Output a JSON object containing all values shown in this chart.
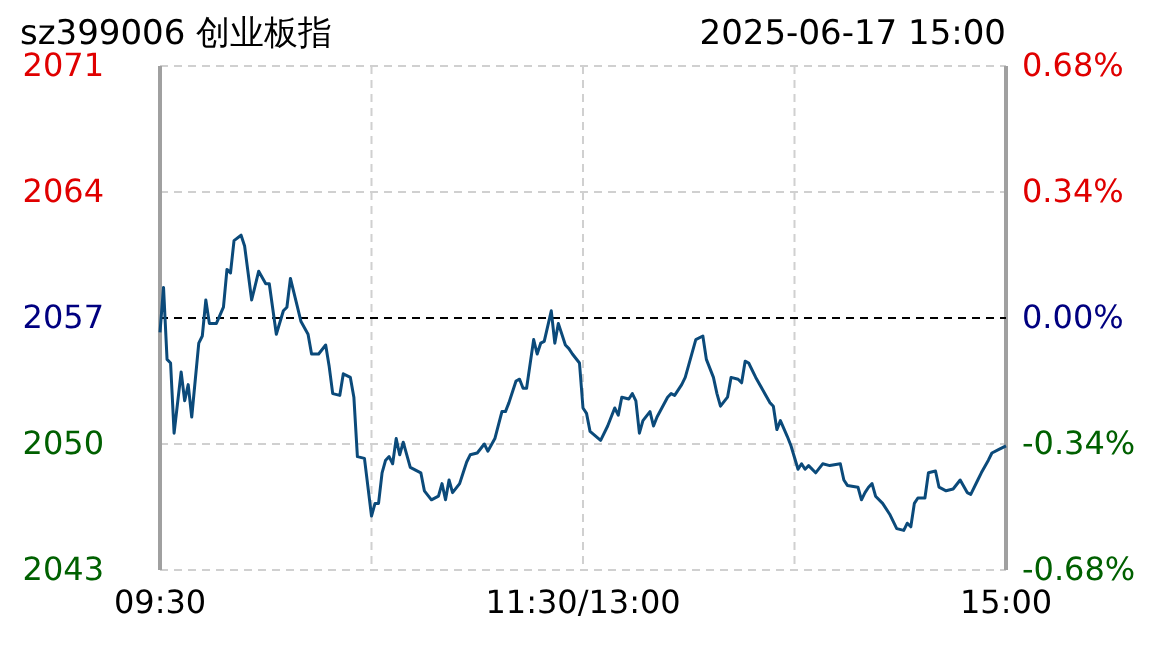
{
  "chart_data": {
    "type": "line",
    "title": "sz399006 创业板指",
    "subtitle": "2025-06-17  15:00",
    "categories": [
      "09:30",
      null,
      null,
      null,
      null,
      null,
      null,
      null,
      null,
      null,
      null,
      null,
      null,
      null,
      null,
      null,
      null,
      null,
      null,
      null,
      null,
      null,
      null,
      null,
      null,
      null,
      null,
      null,
      null,
      null,
      null,
      null,
      null,
      null,
      null,
      null,
      null,
      null,
      null,
      null,
      null,
      null,
      null,
      null,
      null,
      null,
      null,
      null,
      null,
      null,
      null,
      null,
      null,
      null,
      null,
      null,
      null,
      null,
      null,
      null,
      null,
      null,
      null,
      null,
      null,
      null,
      null,
      null,
      null,
      null,
      null,
      null,
      null,
      null,
      null,
      null,
      null,
      null,
      null,
      null,
      null,
      null,
      null,
      null,
      null,
      null,
      null,
      null,
      null,
      null,
      null,
      null,
      null,
      null,
      null,
      null,
      null,
      null,
      null,
      null,
      null,
      null,
      null,
      null,
      null,
      null,
      null,
      null,
      null,
      null,
      null,
      null,
      null,
      null,
      null,
      null,
      null,
      null,
      null,
      null,
      "11:30/13:00",
      null,
      null,
      null,
      null,
      null,
      null,
      null,
      null,
      null,
      null,
      null,
      null,
      null,
      null,
      null,
      null,
      null,
      null,
      null,
      null,
      null,
      null,
      null,
      null,
      null,
      null,
      null,
      null,
      null,
      null,
      null,
      null,
      null,
      null,
      null,
      null,
      null,
      null,
      null,
      null,
      null,
      null,
      null,
      null,
      null,
      null,
      null,
      null,
      null,
      null,
      null,
      null,
      null,
      null,
      null,
      null,
      null,
      null,
      null,
      null,
      null,
      null,
      null,
      null,
      null,
      null,
      null,
      null,
      null,
      null,
      null,
      null,
      null,
      null,
      null,
      null,
      null,
      null,
      null,
      null,
      null,
      null,
      null,
      null,
      null,
      null,
      null,
      null,
      null,
      null,
      null,
      null,
      null,
      null,
      null,
      null,
      null,
      null,
      null,
      null,
      null,
      null,
      null,
      null,
      null,
      null,
      null,
      null,
      null,
      null,
      null,
      null,
      null,
      null,
      null,
      null,
      null,
      null,
      null,
      "15:00"
    ],
    "series": [
      {
        "color": "#0b4a7a",
        "values": [
          2056.2,
          2058.7,
          2054.7,
          2054.5,
          2050.6,
          null,
          2054.0,
          2052.4,
          2053.3,
          2051.5,
          null,
          2055.6,
          2056.0,
          2058.0,
          2056.7,
          null,
          2056.7,
          null,
          2057.6,
          2059.7,
          2059.5,
          2061.3,
          null,
          2061.6,
          2061.0,
          null,
          2058.0,
          null,
          2059.6,
          null,
          2058.9,
          2058.9,
          null,
          2056.1,
          null,
          2057.4,
          2057.6,
          2059.2,
          null,
          2057.6,
          2056.8,
          null,
          2056.1,
          2055.0,
          null,
          2055.0,
          null,
          2055.5,
          2054.3,
          2052.8,
          null,
          2052.7,
          2053.9,
          null,
          2053.7,
          2052.6,
          2049.3,
          null,
          2049.2,
          null,
          2046.0,
          2046.7,
          2046.7,
          2048.4,
          2049.1,
          2049.3,
          2048.9,
          2050.3,
          2049.4,
          2050.1,
          null,
          2048.7,
          null,
          null,
          2048.4,
          2047.4,
          null,
          2046.9,
          null,
          2047.1,
          2047.8,
          2046.9,
          2048.0,
          2047.3,
          null,
          2047.8,
          2048.4,
          2049.0,
          2049.4,
          null,
          2049.5,
          null,
          2050.0,
          2049.6,
          null,
          2050.3,
          null,
          2051.8,
          2051.8,
          2052.3,
          null,
          2053.5,
          2053.6,
          2053.1,
          2053.1,
          null,
          2055.8,
          2055.0,
          2055.6,
          2055.7,
          null,
          2057.4,
          2055.6,
          2056.7,
          null,
          2055.5,
          2055.3,
          2055.0,
          null,
          2054.5,
          2052.0,
          2051.7,
          2050.7,
          null,
          null,
          2050.2,
          null,
          2051.0,
          null,
          2052.0,
          2051.6,
          2052.6,
          null,
          2052.5,
          2052.8,
          2052.4,
          2050.6,
          2051.3,
          null,
          2051.8,
          2051.0,
          2051.5,
          null,
          null,
          2052.6,
          2052.8,
          2052.7,
          null,
          2053.3,
          2053.7,
          2054.4,
          null,
          2055.8,
          null,
          2056.0,
          2054.7,
          null,
          2053.7,
          2052.8,
          2052.1,
          null,
          2052.6,
          2053.7,
          null,
          2053.6,
          2053.4,
          2054.6,
          2054.5,
          null,
          2053.7,
          null,
          2053.0,
          null,
          2052.3,
          2052.1,
          2050.8,
          2051.3,
          null,
          2050.4,
          2049.9,
          null,
          2048.6,
          2048.9,
          2048.6,
          2048.8,
          null,
          2048.4,
          null,
          2048.9,
          null,
          2048.8,
          null,
          null,
          2048.9,
          2048.0,
          2047.7,
          null,
          null,
          2047.6,
          2046.9,
          2047.3,
          2047.6,
          2047.8,
          2047.1,
          null,
          2046.7,
          null,
          2046.1,
          null,
          2045.3,
          null,
          2045.2,
          2045.6,
          2045.4,
          2046.7,
          2047.0,
          null,
          2047.0,
          2048.4,
          null,
          2048.5,
          2047.6,
          null,
          2047.4,
          null,
          2047.5,
          null,
          2048.0,
          null,
          2047.3,
          2047.2,
          null,
          2048.0,
          2048.4,
          null,
          2049.1,
          2049.5,
          null,
          2049.7,
          null,
          2049.9
        ]
      }
    ],
    "ylim": [
      2043,
      2071
    ],
    "yticks": [
      2043,
      2050,
      2057,
      2064,
      2071
    ],
    "y2lim": [
      -0.68,
      0.68
    ],
    "y2ticks": [
      {
        "value": -0.68,
        "label": "-0.68%"
      },
      {
        "value": -0.34,
        "label": "-0.34%"
      },
      {
        "value": 0,
        "label": "0.00%"
      },
      {
        "value": 0.34,
        "label": "0.34%"
      },
      {
        "value": 0.68,
        "label": "0.68%"
      }
    ],
    "ref_lines": [
      {
        "axis": "y2",
        "value": 0,
        "color": "#000000",
        "line_style": "dashed"
      }
    ],
    "grid": true,
    "marker": "none",
    "line_style": "solid"
  }
}
